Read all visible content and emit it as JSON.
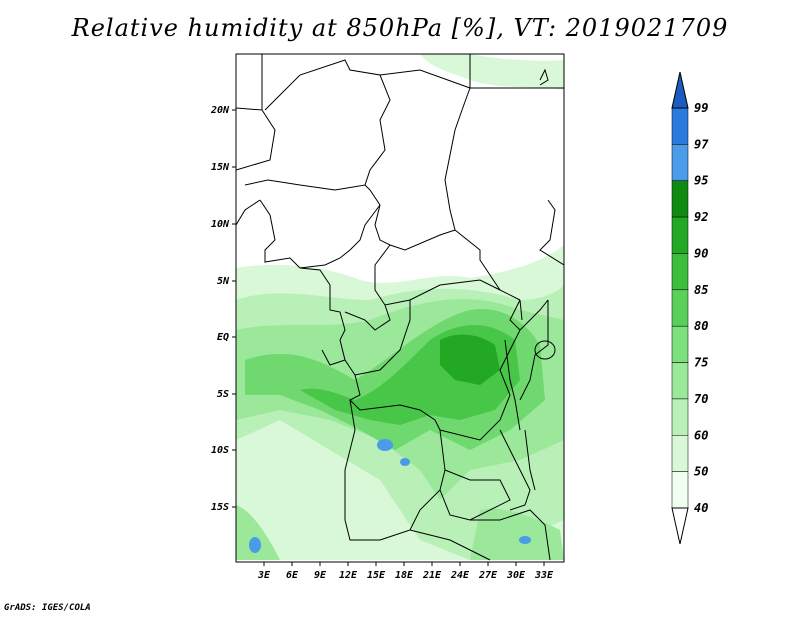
{
  "title": "Relative humidity at 850hPa [%], VT: 2019021709",
  "credit": "GrADS: IGES/COLA",
  "map": {
    "lon_ticks": [
      "3E",
      "6E",
      "9E",
      "12E",
      "15E",
      "18E",
      "21E",
      "24E",
      "27E",
      "30E",
      "33E"
    ],
    "lat_ticks": [
      "20N",
      "15N",
      "10N",
      "5N",
      "EQ",
      "5S",
      "10S",
      "15S"
    ]
  },
  "colorbar": {
    "levels": [
      "40",
      "50",
      "60",
      "70",
      "75",
      "80",
      "85",
      "90",
      "92",
      "95",
      "97",
      "99"
    ],
    "colors": [
      "#f0fff0",
      "#d8f8d8",
      "#b8f0b8",
      "#9be89b",
      "#7ce07c",
      "#5ad05a",
      "#3cbe3c",
      "#22a822",
      "#108a10",
      "#4a9be8",
      "#2a7ae0",
      "#1a5cc0"
    ]
  }
}
